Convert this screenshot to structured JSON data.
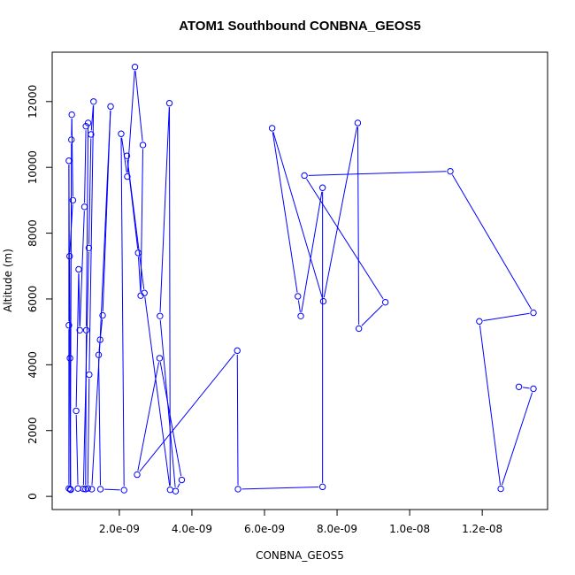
{
  "chart_data": {
    "type": "line",
    "title": "ATOM1 Southbound CONBNA_GEOS5",
    "xlabel": "CONBNA_GEOS5",
    "ylabel": "Altitude (m)",
    "xlim": [
      1.5e-10,
      1.38e-08
    ],
    "ylim": [
      -400,
      13500
    ],
    "x_ticks": [
      {
        "value": 2e-09,
        "label": "2.0e-09"
      },
      {
        "value": 4e-09,
        "label": "4.0e-09"
      },
      {
        "value": 6e-09,
        "label": "6.0e-09"
      },
      {
        "value": 8e-09,
        "label": "8.0e-09"
      },
      {
        "value": 1e-08,
        "label": "1.0e-08"
      },
      {
        "value": 1.2e-08,
        "label": "1.2e-08"
      }
    ],
    "y_ticks": [
      {
        "value": 0,
        "label": "0"
      },
      {
        "value": 2000,
        "label": "2000"
      },
      {
        "value": 4000,
        "label": "4000"
      },
      {
        "value": 6000,
        "label": "6000"
      },
      {
        "value": 8000,
        "label": "8000"
      },
      {
        "value": 10000,
        "label": "10000"
      },
      {
        "value": 12000,
        "label": "12000"
      }
    ],
    "color": "#0000ff",
    "grid": false,
    "markers": "open-circle",
    "series": [
      {
        "points": [
          [
            6.1e-10,
            240
          ],
          [
            6.1e-10,
            5200
          ],
          [
            6.1e-10,
            10200
          ],
          [
            6.5e-10,
            220
          ],
          [
            6.8e-10,
            10840
          ],
          [
            6.9e-10,
            11600
          ],
          [
            7.2e-10,
            9000
          ],
          [
            6.3e-10,
            7300
          ],
          [
            6.4e-10,
            4200
          ],
          [
            6.6e-10,
            200
          ],
          [
            8.6e-10,
            240
          ],
          [
            8.1e-10,
            2600
          ],
          [
            8.8e-10,
            6900
          ],
          [
            9.1e-10,
            5050
          ],
          [
            1.04e-09,
            8800
          ],
          [
            1.08e-09,
            11250
          ],
          [
            1.14e-09,
            11350
          ],
          [
            1.09e-09,
            5050
          ],
          [
            1.07e-09,
            220
          ],
          [
            1.01e-09,
            230
          ],
          [
            1.16e-09,
            7550
          ],
          [
            1.22e-09,
            11000
          ],
          [
            1.29e-09,
            12000
          ],
          [
            1.17e-09,
            3700
          ],
          [
            1.13e-09,
            240
          ],
          [
            1.24e-09,
            220
          ],
          [
            1.47e-09,
            4760
          ],
          [
            1.76e-09,
            11850
          ],
          [
            1.54e-09,
            5500
          ],
          [
            1.43e-09,
            4300
          ],
          [
            1.48e-09,
            220
          ],
          [
            2.13e-09,
            190
          ],
          [
            2.05e-09,
            11020
          ],
          [
            2.22e-09,
            9720
          ],
          [
            2.43e-09,
            13050
          ],
          [
            2.65e-09,
            10680
          ],
          [
            2.59e-09,
            6100
          ],
          [
            2.52e-09,
            7400
          ],
          [
            2.21e-09,
            10350
          ],
          [
            2.69e-09,
            6180
          ],
          [
            3.4e-09,
            200
          ],
          [
            3.38e-09,
            11950
          ],
          [
            3.12e-09,
            5480
          ],
          [
            3.55e-09,
            160
          ],
          [
            3.72e-09,
            500
          ],
          [
            3.11e-09,
            4200
          ],
          [
            2.49e-09,
            660
          ],
          [
            5.25e-09,
            4430
          ],
          [
            5.27e-09,
            220
          ],
          [
            7.6e-09,
            290
          ],
          [
            7.6e-09,
            9380
          ],
          [
            7e-09,
            5480
          ],
          [
            6.92e-09,
            6080
          ],
          [
            6.21e-09,
            11190
          ],
          [
            7.62e-09,
            5930
          ],
          [
            8.57e-09,
            11350
          ],
          [
            8.6e-09,
            5100
          ],
          [
            9.33e-09,
            5900
          ],
          [
            7.1e-09,
            9750
          ],
          [
            1.112e-08,
            9880
          ],
          [
            1.341e-08,
            5580
          ],
          [
            1.192e-08,
            5320
          ],
          [
            1.251e-08,
            230
          ],
          [
            1.341e-08,
            3270
          ],
          [
            1.301e-08,
            3330
          ]
        ]
      }
    ]
  }
}
